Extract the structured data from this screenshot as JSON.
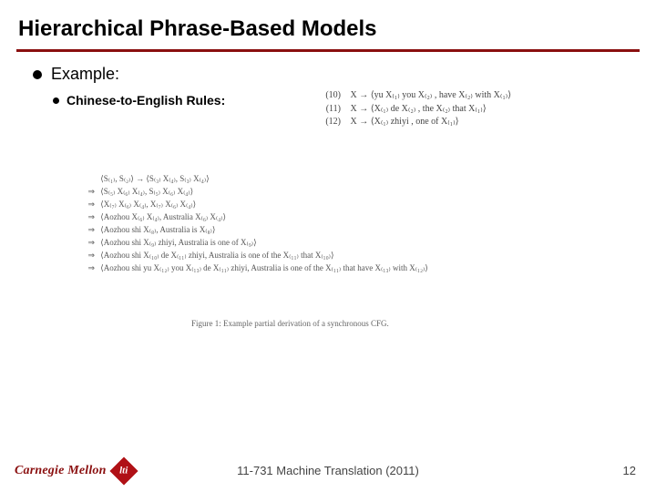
{
  "title": {
    "text": "Hierarchical Phrase-Based Models",
    "fontsize": 24,
    "underline_color": "#8a0f0f"
  },
  "bullets": {
    "example": {
      "text": "Example:",
      "fontsize": 18
    },
    "rules": {
      "text": "Chinese-to-English Rules:",
      "fontsize": 14
    }
  },
  "rules_block": {
    "fontsize": 10,
    "lines": [
      {
        "num": "(10)",
        "body": "X → ⟨yu X₍₁₎ you X₍₂₎ , have X₍₂₎ with X₍₁₎⟩"
      },
      {
        "num": "(11)",
        "body": "X → ⟨X₍₁₎ de X₍₂₎ , the X₍₂₎ that X₍₁₎⟩"
      },
      {
        "num": "(12)",
        "body": "X → ⟨X₍₁₎ zhiyi , one of X₍₁₎⟩"
      }
    ]
  },
  "derivation": {
    "fontsize": 9,
    "lines": [
      {
        "arr": "",
        "body": "⟨S₍₁₎, S₍₂₎⟩ → ⟨S₍₃₎ X₍₄₎, S₍₃₎ X₍₄₎⟩"
      },
      {
        "arr": "⇒",
        "body": "⟨S₍₅₎ X₍₆₎ X₍₄₎, S₍₅₎ X₍₆₎ X₍₄₎⟩"
      },
      {
        "arr": "⇒",
        "body": "⟨X₍₇₎ X₍₆₎ X₍₄₎, X₍₇₎ X₍₆₎ X₍₄₎⟩"
      },
      {
        "arr": "⇒",
        "body": "⟨Aozhou X₍₆₎ X₍₄₎, Australia X₍₆₎ X₍₄₎⟩"
      },
      {
        "arr": "⇒",
        "body": "⟨Aozhou shi X₍₈₎, Australia is X₍₈₎⟩"
      },
      {
        "arr": "⇒",
        "body": "⟨Aozhou shi X₍₉₎ zhiyi, Australia is one of X₍₉₎⟩"
      },
      {
        "arr": "⇒",
        "body": "⟨Aozhou shi X₍₁₀₎ de X₍₁₁₎ zhiyi, Australia is one of the X₍₁₁₎ that X₍₁₀₎⟩"
      },
      {
        "arr": "⇒",
        "body": "⟨Aozhou shi yu X₍₁₂₎ you X₍₁₃₎ de X₍₁₁₎ zhiyi, Australia is one of the X₍₁₁₎ that have X₍₁₃₎ with X₍₁₂₎⟩"
      }
    ]
  },
  "caption": {
    "text": "Figure 1: Example partial derivation of a synchronous CFG.",
    "fontsize": 9
  },
  "footer": {
    "course": "11-731 Machine Translation (2011)",
    "page": "12",
    "fontsize": 13,
    "logo": {
      "cmu_text": "Carnegie Mellon",
      "cmu_color": "#8a0f0f",
      "cmu_fontsize": 14,
      "lti_text": "lti",
      "lti_bg": "#b01116"
    }
  },
  "colors": {
    "background": "#ffffff",
    "text": "#000000",
    "muted": "#555555"
  }
}
